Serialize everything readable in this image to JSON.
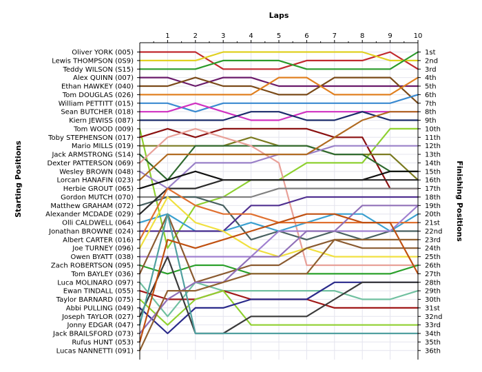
{
  "chart_data": {
    "type": "line",
    "title": "",
    "xlabel": "Laps",
    "ylabel_left": "Starting Positions",
    "ylabel_right": "Finishing Positions",
    "x": [
      0,
      1,
      2,
      3,
      4,
      5,
      6,
      7,
      8,
      9,
      10
    ],
    "x_tick_labels": [
      "1",
      "2",
      "3",
      "4",
      "5",
      "6",
      "7",
      "8",
      "9",
      "10"
    ],
    "ylim": [
      1,
      36
    ],
    "y_inverted": true,
    "grid": true,
    "drivers": [
      "Oliver YORK (005)",
      "Lewis THOMPSON (0S9)",
      "Teddy WILSON (S15)",
      "Alex QUINN (007)",
      "Ethan HAWKEY (040)",
      "Tom DOUGLAS (026)",
      "William PETTITT (015)",
      "Sean BUTCHER (018)",
      "Kiern JEWISS (087)",
      "Tom WOOD (009)",
      "Toby STEPHENSON (017)",
      "Mario MILLS (019)",
      "Jack ARMSTRONG (S14)",
      "Dexter PATTERSON (069)",
      "Wesley BROWN (048)",
      "Lorcan HANAFIN (023)",
      "Herbie GROUT (065)",
      "Gordon MUTCH (070)",
      "Matthew GRAHAM (072)",
      "Alexander MCDADE (029)",
      "Olli CALDWELL (064)",
      "Jonathan BROWNE (024)",
      "Albert CARTER (016)",
      "Joe TURNEY (096)",
      "Owen BYATT (038)",
      "Zach ROBERTSON (095)",
      "Tom BAYLEY (036)",
      "Luca MOLINARO (097)",
      "Ewan TINDALL (055)",
      "Taylor BARNARD (075)",
      "Abbi PULLING (049)",
      "Joseph TAYLOR (027)",
      "Jonny EDGAR (047)",
      "Jack BRAILSFORD (073)",
      "Rufus HUNT (053)",
      "Lucas NANNETTI (091)"
    ],
    "finishing_positions": [
      "1st",
      "2nd",
      "3rd",
      "4th",
      "5th",
      "6th",
      "7th",
      "8th",
      "9th",
      "10th",
      "11th",
      "12th",
      "13th",
      "14th",
      "15th",
      "16th",
      "17th",
      "18th",
      "19th",
      "20th",
      "21st",
      "22nd",
      "23rd",
      "24th",
      "25th",
      "26th",
      "27th",
      "28th",
      "29th",
      "30th",
      "31st",
      "32nd",
      "33rd",
      "34th",
      "35th",
      "36th"
    ],
    "series": [
      {
        "color": "#c0282d",
        "values": [
          1,
          1,
          1,
          3,
          3,
          3,
          2,
          2,
          2,
          1,
          3
        ]
      },
      {
        "color": "#e0d020",
        "values": [
          2,
          2,
          2,
          1,
          1,
          1,
          1,
          1,
          1,
          2,
          2
        ]
      },
      {
        "color": "#2a9a2a",
        "values": [
          3,
          3,
          3,
          2,
          2,
          2,
          3,
          3,
          3,
          3,
          1
        ]
      },
      {
        "color": "#6a1a6a",
        "values": [
          4,
          4,
          5,
          4,
          4,
          5,
          5,
          5,
          5,
          5,
          5
        ]
      },
      {
        "color": "#7a4a18",
        "values": [
          5,
          5,
          4,
          5,
          5,
          6,
          6,
          4,
          4,
          4,
          7
        ]
      },
      {
        "color": "#e08020",
        "values": [
          6,
          6,
          6,
          6,
          6,
          4,
          4,
          6,
          6,
          6,
          4
        ]
      },
      {
        "color": "#3a8ad0",
        "values": [
          7,
          7,
          8,
          7,
          7,
          7,
          7,
          7,
          7,
          7,
          6
        ]
      },
      {
        "color": "#d030c0",
        "values": [
          8,
          8,
          7,
          8,
          9,
          9,
          8,
          8,
          8,
          8,
          8
        ]
      },
      {
        "color": "#1a2a6a",
        "values": [
          9,
          9,
          9,
          9,
          8,
          8,
          9,
          9,
          8,
          9,
          9
        ]
      },
      {
        "color": "#8ed030",
        "values": [
          10,
          24,
          19,
          18,
          16,
          16,
          14,
          14,
          14,
          10,
          10
        ]
      },
      {
        "color": "#8a1010",
        "values": [
          11,
          10,
          11,
          10,
          10,
          10,
          10,
          11,
          11,
          17,
          17
        ]
      },
      {
        "color": "#7a7a20",
        "values": [
          12,
          12,
          12,
          12,
          11,
          12,
          12,
          13,
          13,
          13,
          16
        ]
      },
      {
        "color": "#306a30",
        "values": [
          13,
          16,
          12,
          12,
          12,
          12,
          12,
          13,
          13,
          15,
          15
        ]
      },
      {
        "color": "#e8a098",
        "values": [
          14,
          11,
          10,
          11,
          12,
          14,
          26,
          26,
          26,
          26,
          26
        ]
      },
      {
        "color": "#9a80c8",
        "values": [
          15,
          17,
          14,
          14,
          14,
          13,
          13,
          12,
          12,
          12,
          12
        ]
      },
      {
        "color": "#b06a20",
        "values": [
          16,
          13,
          13,
          13,
          13,
          13,
          13,
          11,
          9,
          8,
          8
        ]
      },
      {
        "color": "#101010",
        "values": [
          17,
          16,
          15,
          16,
          16,
          16,
          16,
          16,
          16,
          15,
          15
        ]
      },
      {
        "color": "#808080",
        "values": [
          18,
          18,
          18,
          18,
          18,
          17,
          17,
          17,
          17,
          17,
          17
        ]
      },
      {
        "color": "#486060",
        "values": [
          19,
          18,
          18,
          19,
          23,
          22,
          23,
          22,
          23,
          22,
          22
        ]
      },
      {
        "color": "#2a2a2a",
        "values": [
          20,
          17,
          17,
          16,
          16,
          16,
          16,
          16,
          16,
          16,
          16
        ]
      },
      {
        "color": "#3aa0d0",
        "values": [
          21,
          20,
          22,
          22,
          21,
          22,
          21,
          20,
          20,
          22,
          20
        ]
      },
      {
        "color": "#503090",
        "values": [
          22,
          22,
          22,
          22,
          19,
          19,
          18,
          18,
          18,
          18,
          18
        ]
      },
      {
        "color": "#e07030",
        "values": [
          23,
          17,
          19,
          20,
          20,
          21,
          21,
          21,
          21,
          21,
          21
        ]
      },
      {
        "color": "#f0e040",
        "values": [
          24,
          18,
          21,
          22,
          24,
          25,
          24,
          25,
          25,
          25,
          25
        ]
      },
      {
        "color": "#a080d0",
        "values": [
          25,
          25,
          25,
          25,
          25,
          22,
          22,
          22,
          22,
          22,
          19
        ]
      },
      {
        "color": "#2aa02a",
        "values": [
          26,
          27,
          26,
          26,
          27,
          27,
          27,
          27,
          27,
          27,
          26
        ]
      },
      {
        "color": "#8a5a30",
        "values": [
          27,
          20,
          28,
          27,
          26,
          26,
          24,
          23,
          24,
          24,
          24
        ]
      },
      {
        "color": "#70c0a0",
        "values": [
          28,
          32,
          28,
          29,
          29,
          29,
          29,
          29,
          30,
          30,
          29
        ]
      },
      {
        "color": "#a01818",
        "values": [
          29,
          30,
          30,
          29,
          30,
          30,
          30,
          31,
          31,
          31,
          31
        ]
      },
      {
        "color": "#90d030",
        "values": [
          30,
          33,
          30,
          29,
          33,
          33,
          33,
          33,
          33,
          33,
          33
        ]
      },
      {
        "color": "#2a2a8a",
        "values": [
          31,
          34,
          31,
          31,
          30,
          30,
          30,
          28,
          28,
          28,
          28
        ]
      },
      {
        "color": "#3a3a3a",
        "values": [
          32,
          25,
          34,
          34,
          32,
          32,
          32,
          30,
          28,
          28,
          28
        ]
      },
      {
        "color": "#50a0a0",
        "values": [
          33,
          20,
          34,
          34,
          34,
          34,
          34,
          34,
          34,
          34,
          34
        ]
      },
      {
        "color": "#9070b8",
        "values": [
          34,
          30,
          28,
          28,
          25,
          25,
          22,
          22,
          19,
          19,
          19
        ]
      },
      {
        "color": "#c05010",
        "values": [
          35,
          23,
          24,
          23,
          22,
          21,
          20,
          20,
          21,
          21,
          27
        ]
      },
      {
        "color": "#906030",
        "values": [
          36,
          29,
          29,
          28,
          27,
          27,
          27,
          23,
          23,
          23,
          23
        ]
      }
    ]
  }
}
